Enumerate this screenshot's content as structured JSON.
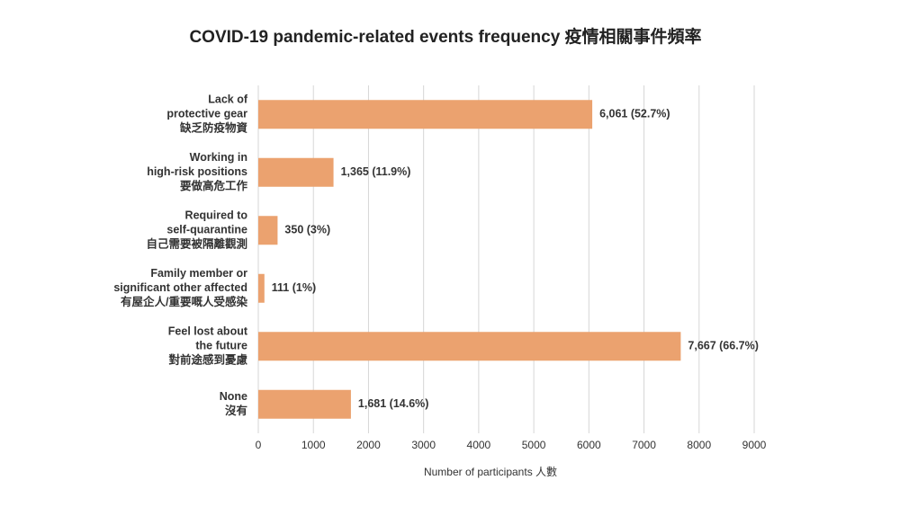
{
  "chart_data": {
    "type": "bar",
    "orientation": "horizontal",
    "title": "COVID-19 pandemic-related events frequency 疫情相關事件頻率",
    "xlabel": "Number of participants 人數",
    "categories": [
      [
        "Lack of",
        "protective gear",
        "缺乏防疫物資"
      ],
      [
        "Working in",
        "high-risk positions",
        "要做高危工作"
      ],
      [
        "Required to",
        "self-quarantine",
        "自己需要被隔離觀測"
      ],
      [
        "Family member or",
        "significant other affected",
        "有屋企人/重要嘅人受感染"
      ],
      [
        "Feel lost about",
        "the future",
        "對前途感到憂慮"
      ],
      [
        "None",
        "沒有"
      ]
    ],
    "values": [
      6061,
      1365,
      350,
      111,
      7667,
      1681
    ],
    "value_labels": [
      "6,061 (52.7%)",
      "1,365 (11.9%)",
      "350 (3%)",
      "111 (1%)",
      "7,667 (66.7%)",
      "1,681 (14.6%)"
    ],
    "color": "#eba26f",
    "xlim": [
      0,
      9000
    ],
    "xticks": [
      0,
      1000,
      2000,
      3000,
      4000,
      5000,
      6000,
      7000,
      8000,
      9000
    ],
    "grid": true
  }
}
